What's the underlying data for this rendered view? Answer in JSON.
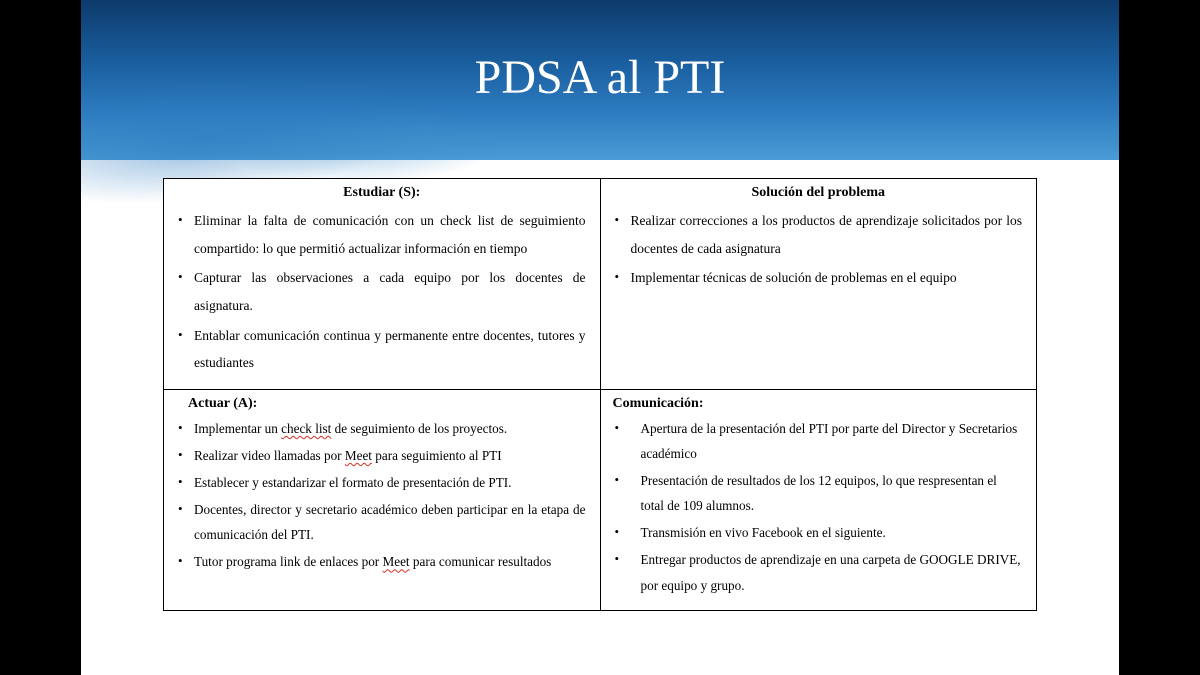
{
  "title": "PDSA al PTI",
  "colors": {
    "header_gradient_top": "#0d3a6b",
    "header_gradient_mid1": "#1a5fa0",
    "header_gradient_mid2": "#2d7bbf",
    "header_gradient_bottom": "#4a9bd6",
    "page_bg": "#000000",
    "slide_bg": "#ffffff",
    "text": "#000000",
    "border": "#000000",
    "title_color": "#ffffff",
    "spellcheck_underline": "#d93025"
  },
  "typography": {
    "title_fontsize": 48,
    "heading_fontsize": 14,
    "body_fontsize": 13.5,
    "font_family": "Georgia, 'Times New Roman', serif"
  },
  "cells": {
    "top_left": {
      "heading": "Estudiar (S):",
      "heading_align": "center",
      "justify": true,
      "items": [
        "Eliminar la falta de comunicación con un check list de seguimiento compartido: lo que permitió actualizar información en tiempo",
        "Capturar las observaciones a cada equipo por los docentes de asignatura.",
        "Entablar comunicación continua y permanente entre docentes, tutores y estudiantes"
      ]
    },
    "top_right": {
      "heading": "Solución del problema",
      "heading_align": "center",
      "justify": true,
      "items": [
        "Realizar correcciones a los productos de aprendizaje solicitados por los docentes de cada asignatura",
        "Implementar técnicas de solución de problemas en el equipo"
      ]
    },
    "bottom_left": {
      "heading": "Actuar (A):",
      "heading_align": "left",
      "justify": true,
      "items_html": [
        "Implementar un <span class=\"squiggle\">check list</span> de seguimiento de los proyectos.",
        "Realizar video llamadas por <span class=\"squiggle\">Meet</span> para seguimiento al PTI",
        "Establecer y estandarizar el formato de presentación de PTI.",
        "Docentes, director y secretario académico deben participar en la etapa de comunicación del PTI.",
        "Tutor programa link de enlaces por <span class=\"squiggle\">Meet</span> para comunicar resultados"
      ]
    },
    "bottom_right": {
      "heading": "Comunicación:",
      "heading_align": "left",
      "justify": false,
      "items": [
        "Apertura de la presentación del PTI por parte del Director y Secretarios académico",
        "Presentación de resultados de los 12 equipos, lo que respresentan el total de 109 alumnos.",
        "Transmisión en vivo Facebook en el siguiente.",
        "Entregar productos de aprendizaje en una carpeta de GOOGLE DRIVE, por equipo y grupo."
      ]
    }
  }
}
